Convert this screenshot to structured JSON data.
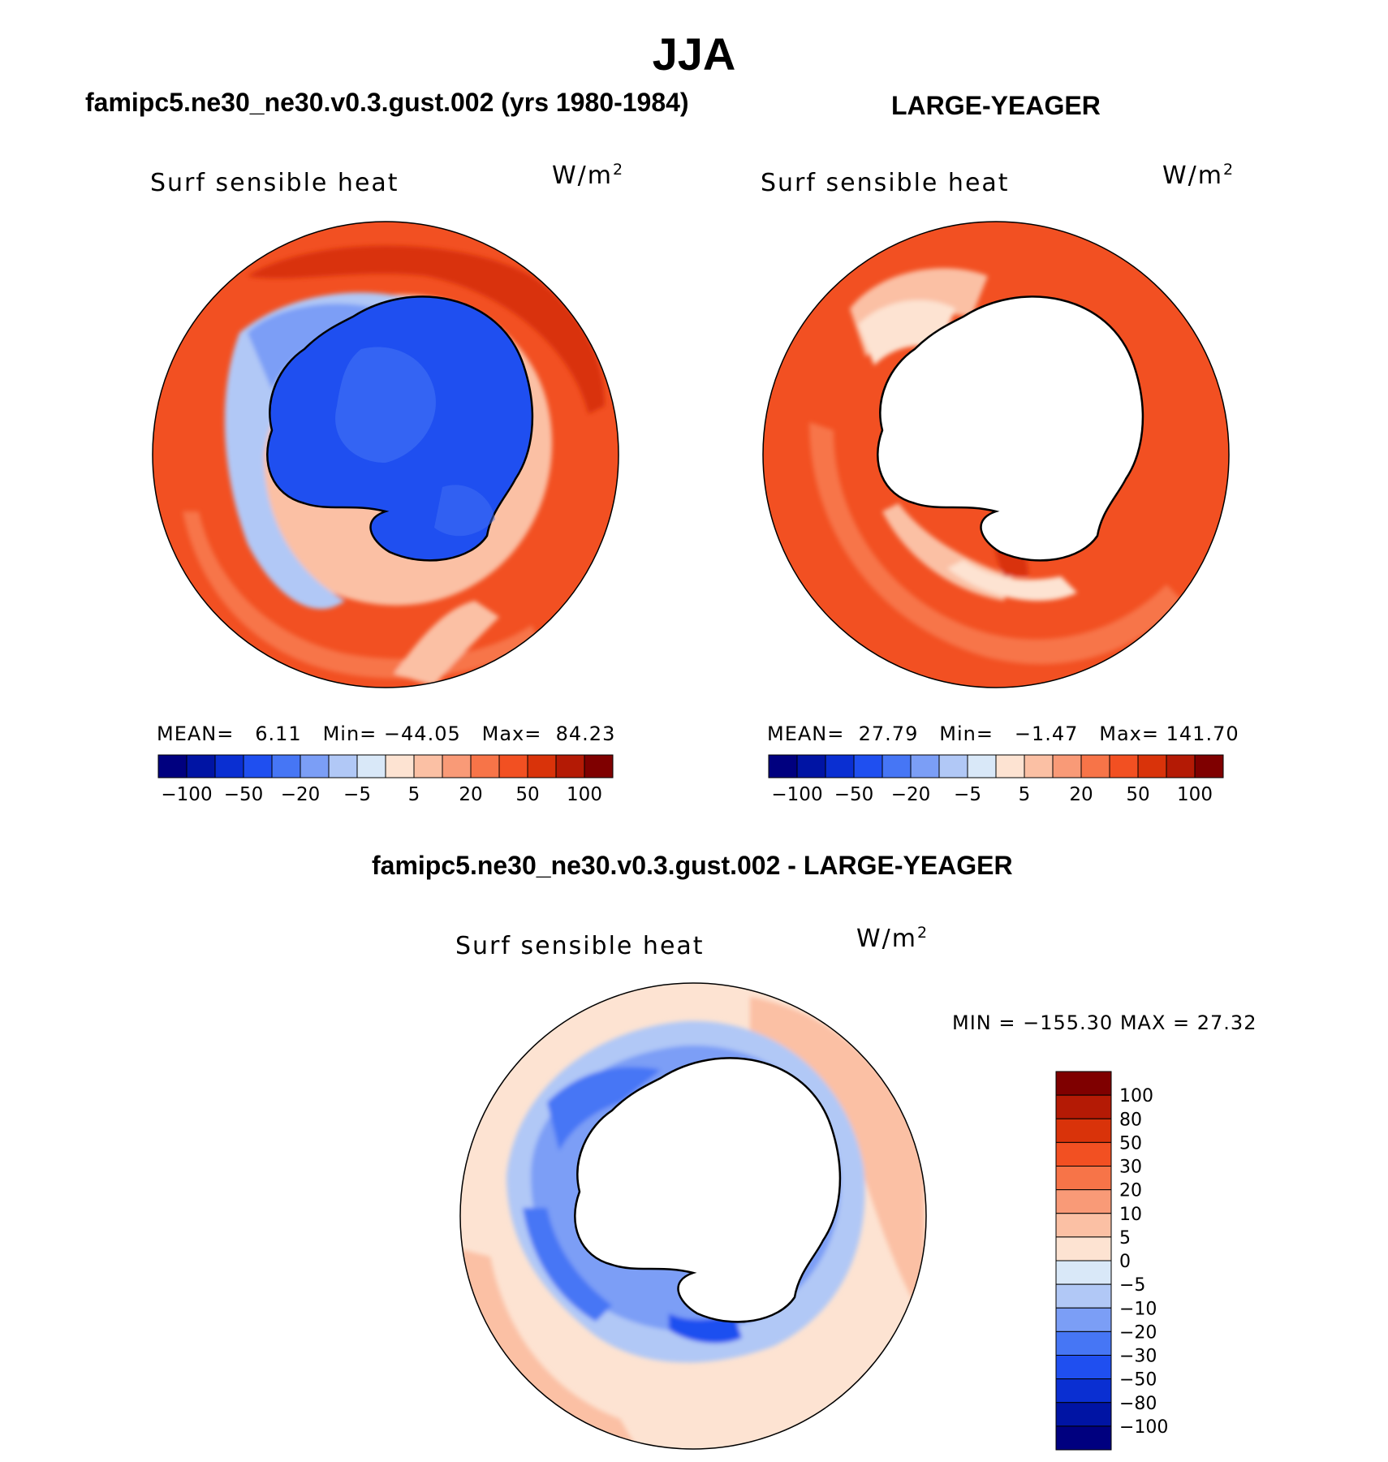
{
  "title": "JJA",
  "panels": [
    {
      "id": "model",
      "heading": "famipc5.ne30_ne30.v0.3.gust.002 (yrs 1980-1984)",
      "variable": "Surf sensible heat",
      "units_base": "W/m",
      "units_exp": "2",
      "stats": {
        "mean_label": "MEAN=",
        "mean": "6.11",
        "min_label": "Min=",
        "min": "−44.05",
        "max_label": "Max=",
        "max": "84.23"
      }
    },
    {
      "id": "obs",
      "heading": "LARGE-YEAGER",
      "variable": "Surf sensible heat",
      "units_base": "W/m",
      "units_exp": "2",
      "stats": {
        "mean_label": "MEAN=",
        "mean": "27.79",
        "min_label": "Min=",
        "min": "−1.47",
        "max_label": "Max=",
        "max": "141.70"
      }
    },
    {
      "id": "diff",
      "heading": "famipc5.ne30_ne30.v0.3.gust.002 - LARGE-YEAGER",
      "variable": "Surf sensible heat",
      "units_base": "W/m",
      "units_exp": "2",
      "stats_text": "MIN = −155.30 MAX =   27.32"
    }
  ],
  "colorbar_horizontal": {
    "colors": [
      "#00007f",
      "#0014a4",
      "#0a2fd2",
      "#1f4ff0",
      "#4676f5",
      "#7b9ef6",
      "#b1c8f6",
      "#d9e8f8",
      "#fde3d2",
      "#fbc0a4",
      "#f99a77",
      "#f77448",
      "#f25022",
      "#d9330a",
      "#b41a05",
      "#7f0000"
    ],
    "labels": [
      "−100",
      "−50",
      "−20",
      "−5",
      "5",
      "20",
      "50",
      "100"
    ]
  },
  "colorbar_vertical": {
    "colors": [
      "#7f0000",
      "#b41a05",
      "#d9330a",
      "#f25022",
      "#f77448",
      "#f99a77",
      "#fbc0a4",
      "#fde3d2",
      "#d9e8f8",
      "#b1c8f6",
      "#7b9ef6",
      "#4676f5",
      "#1f4ff0",
      "#0a2fd2",
      "#0014a4",
      "#00007f"
    ],
    "labels": [
      "100",
      "80",
      "50",
      "30",
      "20",
      "10",
      "5",
      "0",
      "−5",
      "−10",
      "−20",
      "−30",
      "−50",
      "−80",
      "−100"
    ]
  }
}
